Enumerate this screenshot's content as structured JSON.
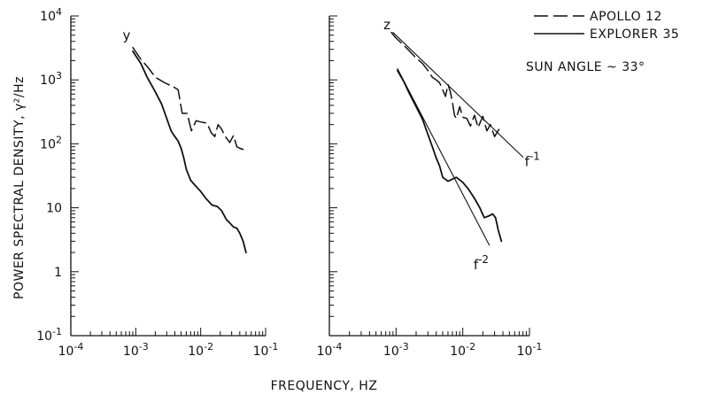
{
  "figure": {
    "ylabel": "POWER SPECTRAL DENSITY, γ²/Hz",
    "xlabel": "FREQUENCY, HZ",
    "legend": [
      {
        "label": "APOLLO 12",
        "style": "dashed"
      },
      {
        "label": "EXPLORER 35",
        "style": "solid"
      }
    ],
    "sun_angle_text": "SUN ANGLE ~ 33°",
    "color": "#111111"
  },
  "chart_data": [
    {
      "type": "line",
      "panel_label": "y",
      "xscale": "log",
      "yscale": "log",
      "xlim": [
        0.0001,
        0.1
      ],
      "ylim": [
        0.1,
        10000
      ],
      "xticks": [
        {
          "value": 0.0001,
          "base": "10",
          "exp": "-4"
        },
        {
          "value": 0.001,
          "base": "10",
          "exp": "-3"
        },
        {
          "value": 0.01,
          "base": "10",
          "exp": "-2"
        },
        {
          "value": 0.1,
          "base": "10",
          "exp": "-1"
        }
      ],
      "yticks": [
        {
          "value": 0.1,
          "base": "10",
          "exp": "-1"
        },
        {
          "value": 1,
          "base": "1",
          "exp": ""
        },
        {
          "value": 10,
          "base": "10",
          "exp": ""
        },
        {
          "value": 100,
          "base": "10",
          "exp": "2"
        },
        {
          "value": 1000,
          "base": "10",
          "exp": "3"
        },
        {
          "value": 10000,
          "base": "10",
          "exp": "4"
        }
      ],
      "series": [
        {
          "name": "APOLLO 12",
          "style": "dashed",
          "x": [
            0.0009,
            0.0012,
            0.0016,
            0.002,
            0.0028,
            0.0038,
            0.0045,
            0.0052,
            0.0062,
            0.0072,
            0.0085,
            0.01,
            0.0125,
            0.0145,
            0.0165,
            0.0185,
            0.021,
            0.024,
            0.028,
            0.032,
            0.036,
            0.04,
            0.045
          ],
          "y": [
            3200,
            2100,
            1500,
            1100,
            900,
            780,
            700,
            300,
            300,
            160,
            230,
            220,
            210,
            150,
            130,
            200,
            170,
            130,
            105,
            135,
            90,
            85,
            82
          ]
        },
        {
          "name": "EXPLORER 35",
          "style": "solid",
          "x": [
            0.0009,
            0.0012,
            0.0015,
            0.002,
            0.0025,
            0.003,
            0.0035,
            0.004,
            0.0045,
            0.005,
            0.0055,
            0.006,
            0.007,
            0.008,
            0.01,
            0.012,
            0.015,
            0.018,
            0.021,
            0.025,
            0.028,
            0.032,
            0.036,
            0.04,
            0.045,
            0.05
          ],
          "y": [
            2800,
            1800,
            1100,
            650,
            420,
            250,
            160,
            130,
            110,
            85,
            60,
            40,
            27,
            23,
            18,
            14,
            11,
            10.5,
            9,
            6.5,
            5.8,
            5,
            4.8,
            4,
            3,
            2
          ]
        }
      ]
    },
    {
      "type": "line",
      "panel_label": "z",
      "xscale": "log",
      "yscale": "log",
      "xlim": [
        0.0001,
        0.1
      ],
      "ylim": [
        0.1,
        10000
      ],
      "xticks": [
        {
          "value": 0.0001,
          "base": "10",
          "exp": "-4"
        },
        {
          "value": 0.001,
          "base": "10",
          "exp": "-3"
        },
        {
          "value": 0.01,
          "base": "10",
          "exp": "-2"
        },
        {
          "value": 0.1,
          "base": "10",
          "exp": "-1"
        }
      ],
      "yticks": [],
      "series": [
        {
          "name": "APOLLO 12",
          "style": "dashed",
          "x": [
            0.00085,
            0.001,
            0.0013,
            0.0016,
            0.002,
            0.0025,
            0.003,
            0.0035,
            0.004,
            0.0045,
            0.005,
            0.0055,
            0.006,
            0.0065,
            0.007,
            0.0075,
            0.008,
            0.009,
            0.01,
            0.0115,
            0.013,
            0.015,
            0.017,
            0.02,
            0.023,
            0.026,
            0.03,
            0.035
          ],
          "y": [
            5500,
            4500,
            3500,
            2800,
            2200,
            1800,
            1400,
            1100,
            1000,
            900,
            700,
            550,
            850,
            650,
            450,
            280,
            250,
            380,
            260,
            250,
            190,
            280,
            180,
            270,
            160,
            200,
            130,
            170
          ]
        },
        {
          "name": "EXPLORER 35",
          "style": "solid",
          "x": [
            0.00105,
            0.0013,
            0.0016,
            0.002,
            0.0025,
            0.003,
            0.0035,
            0.004,
            0.0045,
            0.005,
            0.006,
            0.007,
            0.008,
            0.01,
            0.012,
            0.015,
            0.018,
            0.021,
            0.025,
            0.028,
            0.031,
            0.034,
            0.038
          ],
          "y": [
            1400,
            950,
            600,
            380,
            240,
            140,
            90,
            60,
            45,
            30,
            26,
            28,
            30,
            25,
            20,
            14,
            10,
            7,
            7.5,
            8,
            7,
            4.5,
            3
          ]
        },
        {
          "name": "f^-1",
          "style": "reference",
          "x": [
            0.0009,
            0.08
          ],
          "y": [
            5500,
            62
          ]
        },
        {
          "name": "f^-2",
          "style": "reference",
          "x": [
            0.00105,
            0.025
          ],
          "y": [
            1500,
            2.6
          ]
        }
      ],
      "annotations": [
        {
          "base": "f",
          "exp": "-1",
          "x": 0.085,
          "y": 45
        },
        {
          "base": "f",
          "exp": "-2",
          "x": 0.0145,
          "y": 1.1
        }
      ]
    }
  ]
}
